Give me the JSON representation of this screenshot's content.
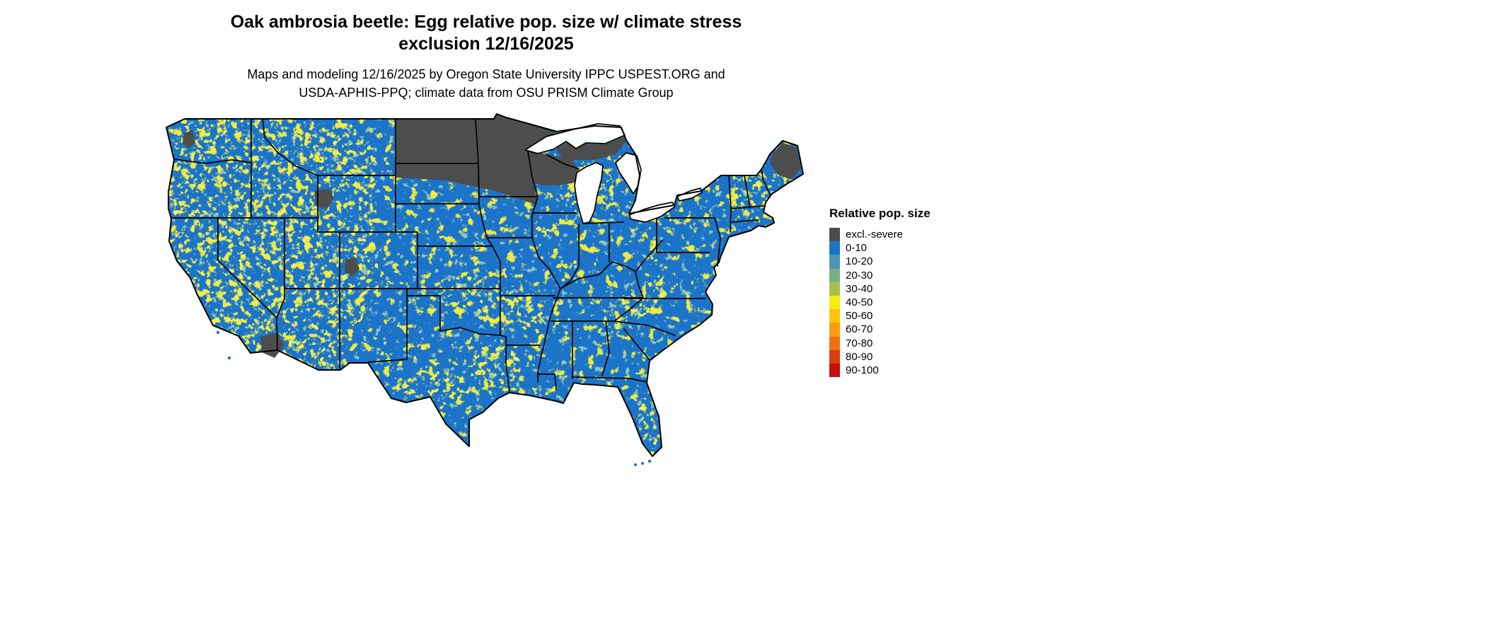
{
  "figure": {
    "title_line1": "Oak ambrosia beetle: Egg relative pop. size w/ climate stress",
    "title_line2": "exclusion 12/16/2025",
    "subtitle_line1": "Maps and modeling 12/16/2025 by Oregon State University IPPC USPEST.ORG and",
    "subtitle_line2": "USDA-APHIS-PPQ; climate data from OSU PRISM Climate Group"
  },
  "legend": {
    "title": "Relative pop. size",
    "items": [
      {
        "label": "excl.-severe",
        "color": "#4d4d4d"
      },
      {
        "label": "0-10",
        "color": "#1b74c9"
      },
      {
        "label": "10-20",
        "color": "#4e96b5"
      },
      {
        "label": "20-30",
        "color": "#74b183"
      },
      {
        "label": "30-40",
        "color": "#a8c04d"
      },
      {
        "label": "40-50",
        "color": "#f5ec11"
      },
      {
        "label": "50-60",
        "color": "#fec40d"
      },
      {
        "label": "60-70",
        "color": "#f99d0d"
      },
      {
        "label": "70-80",
        "color": "#f0720e"
      },
      {
        "label": "80-90",
        "color": "#dd3d10"
      },
      {
        "label": "90-100",
        "color": "#c80d0d"
      }
    ]
  },
  "map": {
    "region_label": "Contiguous United States",
    "base_color": "#1b74c9",
    "exclusion_color": "#4d4d4d",
    "border_color": "#000000",
    "water_color": "#ffffff"
  }
}
